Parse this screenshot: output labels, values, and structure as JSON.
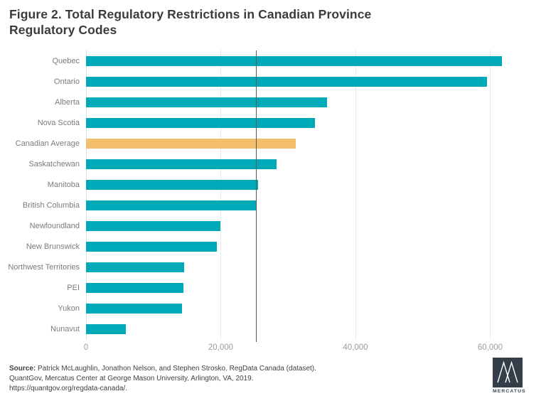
{
  "title": "Figure 2. Total Regulatory Restrictions in Canadian Province Regulatory Codes",
  "chart_data": {
    "type": "bar",
    "orientation": "horizontal",
    "title": "Figure 2. Total Regulatory Restrictions in Canadian Province Regulatory Codes",
    "categories": [
      "Quebec",
      "Ontario",
      "Alberta",
      "Nova Scotia",
      "Canadian Average",
      "Saskatchewan",
      "Manitoba",
      "British Columbia",
      "Newfoundland",
      "New Brunswick",
      "Northwest Territories",
      "PEI",
      "Yukon",
      "Nunavut"
    ],
    "values": [
      61700,
      59500,
      35800,
      34000,
      31100,
      28300,
      25500,
      25200,
      19900,
      19400,
      14600,
      14500,
      14200,
      5900
    ],
    "highlight_category": "Canadian Average",
    "bar_color": "#00a9b7",
    "highlight_color": "#f3bf6d",
    "reference_line_value": 25200,
    "reference_line_color": "#58595b",
    "xlim": [
      0,
      68300
    ],
    "x_ticks": [
      0,
      20000,
      40000,
      60000
    ],
    "x_tick_labels": [
      "0",
      "20,000",
      "40,000",
      "60,000"
    ],
    "grid": "vertical-on",
    "legend": "none",
    "xlabel": "",
    "ylabel": ""
  },
  "footer": {
    "source_label": "Source:",
    "source_rest": " Patrick McLaughlin, Jonathon Nelson, and Stephen Strosko. RegData Canada (dataset).",
    "line2": "QuantGov, Mercatus Center at George Mason University,  Arlington, VA, 2019.",
    "line3": "https://quantgov.org/regdata-canada/."
  },
  "logo": {
    "text": "MERCATUS",
    "square_color": "#333e48"
  }
}
